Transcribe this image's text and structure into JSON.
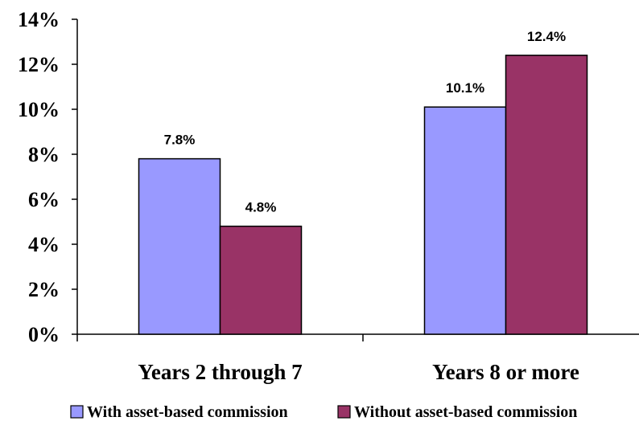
{
  "chart_data": {
    "type": "bar",
    "categories": [
      "Years 2 through 7",
      "Years 8 or more"
    ],
    "series": [
      {
        "name": "With asset-based commission",
        "values": [
          7.8,
          10.1
        ],
        "labels": [
          "7.8%",
          "10.1%"
        ],
        "color": "#9999ff"
      },
      {
        "name": "Without asset-based commission",
        "values": [
          4.8,
          12.4
        ],
        "labels": [
          "4.8%",
          "12.4%"
        ],
        "color": "#993366"
      }
    ],
    "yticks": [
      "0%",
      "2%",
      "4%",
      "6%",
      "8%",
      "10%",
      "12%",
      "14%"
    ],
    "ylim": [
      0,
      14
    ],
    "ytick_step": 2,
    "grid": false,
    "legend_position": "bottom",
    "title": "",
    "xlabel": "",
    "ylabel": ""
  }
}
